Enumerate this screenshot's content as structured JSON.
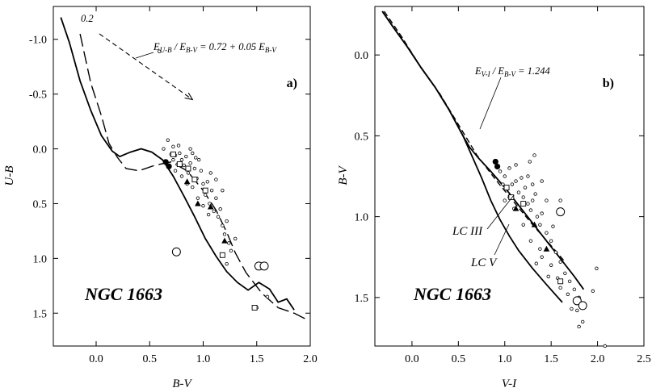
{
  "chart_data": [
    {
      "type": "scatter",
      "panel_tag": "a)",
      "cluster_name": "NGC 1663",
      "xlabel": "B-V",
      "ylabel": "U-B",
      "xlim": [
        -0.4,
        2.0
      ],
      "ylim": [
        -1.3,
        1.8
      ],
      "y_inverted": true,
      "x_ticks": [
        "0.0",
        "0.5",
        "1.0",
        "1.5",
        "2.0"
      ],
      "x_tick_values": [
        0.0,
        0.5,
        1.0,
        1.5,
        2.0
      ],
      "y_ticks": [
        "-1.0",
        "-0.5",
        "0.0",
        "0.5",
        "1.0",
        "1.5"
      ],
      "y_tick_values": [
        -1.0,
        -0.5,
        0.0,
        0.5,
        1.0,
        1.5
      ],
      "reddening_label": "E_{U-B} / E_{B-V} = 0.72 + 0.05 E_{B-V}",
      "reddening_value_label": "0.2",
      "reddening_vector": [
        [
          0.03,
          -1.05
        ],
        [
          0.9,
          -0.45
        ]
      ],
      "series": [
        {
          "style": "solid",
          "points": [
            [
              -0.33,
              -1.2
            ],
            [
              -0.25,
              -0.97
            ],
            [
              -0.15,
              -0.62
            ],
            [
              -0.05,
              -0.35
            ],
            [
              0.05,
              -0.12
            ],
            [
              0.15,
              0.02
            ],
            [
              0.22,
              0.07
            ],
            [
              0.32,
              0.03
            ],
            [
              0.42,
              0.0
            ],
            [
              0.52,
              0.03
            ],
            [
              0.62,
              0.1
            ],
            [
              0.72,
              0.25
            ],
            [
              0.82,
              0.43
            ],
            [
              0.92,
              0.62
            ],
            [
              1.02,
              0.82
            ],
            [
              1.12,
              0.98
            ],
            [
              1.22,
              1.12
            ],
            [
              1.32,
              1.22
            ],
            [
              1.42,
              1.29
            ],
            [
              1.52,
              1.22
            ],
            [
              1.62,
              1.28
            ],
            [
              1.7,
              1.4
            ],
            [
              1.78,
              1.37
            ],
            [
              1.85,
              1.47
            ]
          ]
        },
        {
          "style": "long-dash",
          "points": [
            [
              -0.15,
              -1.05
            ],
            [
              -0.05,
              -0.6
            ],
            [
              0.05,
              -0.3
            ],
            [
              0.12,
              -0.05
            ],
            [
              0.2,
              0.08
            ],
            [
              0.28,
              0.18
            ],
            [
              0.4,
              0.2
            ],
            [
              0.55,
              0.15
            ],
            [
              0.7,
              0.12
            ],
            [
              0.85,
              0.2
            ],
            [
              1.0,
              0.38
            ],
            [
              1.12,
              0.56
            ],
            [
              1.22,
              0.76
            ],
            [
              1.3,
              0.95
            ],
            [
              1.4,
              1.13
            ],
            [
              1.55,
              1.32
            ],
            [
              1.7,
              1.45
            ],
            [
              1.85,
              1.5
            ],
            [
              1.95,
              1.55
            ]
          ]
        }
      ],
      "points_small_circle": [
        [
          0.7,
          0.05
        ],
        [
          0.72,
          0.1
        ],
        [
          0.74,
          0.06
        ],
        [
          0.76,
          0.14
        ],
        [
          0.78,
          0.04
        ],
        [
          0.8,
          0.1
        ],
        [
          0.82,
          0.15
        ],
        [
          0.84,
          0.07
        ],
        [
          0.86,
          0.22
        ],
        [
          0.88,
          0.13
        ],
        [
          0.9,
          0.04
        ],
        [
          0.92,
          0.18
        ],
        [
          0.94,
          0.27
        ],
        [
          0.96,
          0.1
        ],
        [
          0.98,
          0.2
        ],
        [
          1.0,
          0.32
        ],
        [
          1.02,
          0.42
        ],
        [
          1.04,
          0.3
        ],
        [
          1.06,
          0.5
        ],
        [
          1.08,
          0.38
        ],
        [
          1.1,
          0.57
        ],
        [
          1.12,
          0.45
        ],
        [
          1.14,
          0.62
        ],
        [
          1.16,
          0.55
        ],
        [
          1.18,
          0.7
        ],
        [
          1.2,
          0.78
        ],
        [
          1.22,
          0.66
        ],
        [
          1.24,
          0.86
        ],
        [
          1.26,
          0.93
        ],
        [
          1.3,
          0.82
        ],
        [
          0.74,
          0.2
        ],
        [
          0.8,
          0.25
        ],
        [
          0.85,
          0.32
        ],
        [
          0.9,
          0.35
        ],
        [
          0.95,
          0.45
        ],
        [
          1.0,
          0.52
        ],
        [
          1.05,
          0.6
        ],
        [
          0.67,
          -0.08
        ],
        [
          0.72,
          -0.02
        ],
        [
          0.88,
          0.0
        ],
        [
          0.93,
          0.08
        ],
        [
          0.77,
          -0.03
        ],
        [
          0.63,
          0.0
        ],
        [
          1.12,
          0.28
        ],
        [
          1.18,
          0.38
        ],
        [
          1.07,
          0.22
        ],
        [
          0.59,
          -0.89
        ],
        [
          1.22,
          1.05
        ],
        [
          1.5,
          1.45
        ],
        [
          1.6,
          1.35
        ]
      ],
      "points_large_circle": [
        [
          0.75,
          0.94
        ],
        [
          1.52,
          1.07
        ],
        [
          1.57,
          1.07
        ]
      ],
      "points_square": [
        [
          0.72,
          0.05
        ],
        [
          0.78,
          0.14
        ],
        [
          0.86,
          0.18
        ],
        [
          0.92,
          0.28
        ],
        [
          1.02,
          0.38
        ],
        [
          1.18,
          0.97
        ],
        [
          1.48,
          1.45
        ]
      ],
      "points_filled_circle": [
        [
          0.65,
          0.12
        ],
        [
          0.68,
          0.16
        ]
      ],
      "points_triangle": [
        [
          0.85,
          0.3
        ],
        [
          0.95,
          0.5
        ],
        [
          1.07,
          0.53
        ],
        [
          1.2,
          0.84
        ]
      ]
    },
    {
      "type": "scatter",
      "panel_tag": "b)",
      "cluster_name": "NGC 1663",
      "xlabel": "V-I",
      "ylabel": "B-V",
      "xlim": [
        -0.4,
        2.5
      ],
      "ylim": [
        -0.3,
        1.8
      ],
      "y_inverted": true,
      "x_ticks": [
        "0.0",
        "0.5",
        "1.0",
        "1.5",
        "2.0",
        "2.5"
      ],
      "x_tick_values": [
        0.0,
        0.5,
        1.0,
        1.5,
        2.0,
        2.5
      ],
      "y_ticks": [
        "0.0",
        "0.5",
        "1.0",
        "1.5"
      ],
      "y_tick_values": [
        0.0,
        0.5,
        1.0,
        1.5
      ],
      "reddening_label": "E_{V-I} / E_{B-V} = 1.244",
      "lc_labels": [
        "LC III",
        "LC V"
      ],
      "series": [
        {
          "style": "solid",
          "points": [
            [
              -0.32,
              -0.27
            ],
            [
              -0.2,
              -0.17
            ],
            [
              -0.05,
              -0.05
            ],
            [
              0.1,
              0.08
            ],
            [
              0.25,
              0.2
            ],
            [
              0.4,
              0.34
            ],
            [
              0.55,
              0.5
            ],
            [
              0.65,
              0.63
            ],
            [
              0.75,
              0.76
            ],
            [
              0.85,
              0.9
            ],
            [
              0.95,
              1.02
            ],
            [
              1.05,
              1.12
            ],
            [
              1.15,
              1.21
            ],
            [
              1.3,
              1.32
            ],
            [
              1.45,
              1.42
            ],
            [
              1.62,
              1.53
            ]
          ]
        },
        {
          "style": "solid",
          "points": [
            [
              -0.32,
              -0.27
            ],
            [
              -0.2,
              -0.17
            ],
            [
              -0.05,
              -0.05
            ],
            [
              0.1,
              0.08
            ],
            [
              0.25,
              0.2
            ],
            [
              0.4,
              0.34
            ],
            [
              0.55,
              0.5
            ],
            [
              0.62,
              0.57
            ],
            [
              0.72,
              0.64
            ],
            [
              0.85,
              0.72
            ],
            [
              1.0,
              0.82
            ],
            [
              1.15,
              0.93
            ],
            [
              1.3,
              1.04
            ],
            [
              1.45,
              1.15
            ],
            [
              1.6,
              1.26
            ],
            [
              1.75,
              1.37
            ],
            [
              1.85,
              1.45
            ]
          ]
        },
        {
          "style": "dash",
          "points": [
            [
              -0.3,
              -0.27
            ],
            [
              -0.12,
              -0.12
            ],
            [
              0.1,
              0.08
            ],
            [
              0.3,
              0.24
            ],
            [
              0.5,
              0.43
            ],
            [
              0.7,
              0.62
            ],
            [
              0.9,
              0.77
            ],
            [
              1.1,
              0.91
            ],
            [
              1.3,
              1.05
            ],
            [
              1.5,
              1.18
            ],
            [
              1.65,
              1.28
            ]
          ]
        }
      ],
      "points_small_circle": [
        [
          0.95,
          0.72
        ],
        [
          1.0,
          0.75
        ],
        [
          1.05,
          0.7
        ],
        [
          1.08,
          0.8
        ],
        [
          1.12,
          0.78
        ],
        [
          1.15,
          0.85
        ],
        [
          1.2,
          0.88
        ],
        [
          1.22,
          0.82
        ],
        [
          1.25,
          0.92
        ],
        [
          1.28,
          0.96
        ],
        [
          1.3,
          0.9
        ],
        [
          1.35,
          1.0
        ],
        [
          1.38,
          1.05
        ],
        [
          1.4,
          0.98
        ],
        [
          1.45,
          1.1
        ],
        [
          1.5,
          1.15
        ],
        [
          1.55,
          1.22
        ],
        [
          1.6,
          1.28
        ],
        [
          1.65,
          1.35
        ],
        [
          1.7,
          1.4
        ],
        [
          1.75,
          1.45
        ],
        [
          1.8,
          1.5
        ],
        [
          1.05,
          0.88
        ],
        [
          1.1,
          0.95
        ],
        [
          1.18,
          0.76
        ],
        [
          1.25,
          0.75
        ],
        [
          1.3,
          0.8
        ],
        [
          1.33,
          0.86
        ],
        [
          1.2,
          1.05
        ],
        [
          1.28,
          1.15
        ],
        [
          1.4,
          1.25
        ],
        [
          1.5,
          1.3
        ],
        [
          1.57,
          1.38
        ],
        [
          1.68,
          1.48
        ],
        [
          1.78,
          1.58
        ],
        [
          1.84,
          1.65
        ],
        [
          1.99,
          1.32
        ],
        [
          1.95,
          1.46
        ],
        [
          2.08,
          1.8
        ],
        [
          1.72,
          1.57
        ],
        [
          1.6,
          1.44
        ],
        [
          1.47,
          1.37
        ],
        [
          1.34,
          1.29
        ],
        [
          1.32,
          0.62
        ],
        [
          1.6,
          0.9
        ],
        [
          1.45,
          0.9
        ],
        [
          1.0,
          0.9
        ],
        [
          0.98,
          0.8
        ],
        [
          1.38,
          1.2
        ],
        [
          1.52,
          1.06
        ],
        [
          1.4,
          0.78
        ],
        [
          1.27,
          0.66
        ],
        [
          1.12,
          0.68
        ],
        [
          1.8,
          1.68
        ]
      ],
      "points_large_circle": [
        [
          1.78,
          1.52
        ],
        [
          1.84,
          1.55
        ],
        [
          1.6,
          0.97
        ]
      ],
      "points_square": [
        [
          1.02,
          0.82
        ],
        [
          1.07,
          0.88
        ],
        [
          1.2,
          0.92
        ],
        [
          1.6,
          1.4
        ]
      ],
      "points_filled_circle": [
        [
          0.9,
          0.66
        ],
        [
          0.92,
          0.69
        ]
      ],
      "points_triangle": [
        [
          1.12,
          0.95
        ],
        [
          1.32,
          1.05
        ],
        [
          1.45,
          1.2
        ]
      ]
    }
  ]
}
